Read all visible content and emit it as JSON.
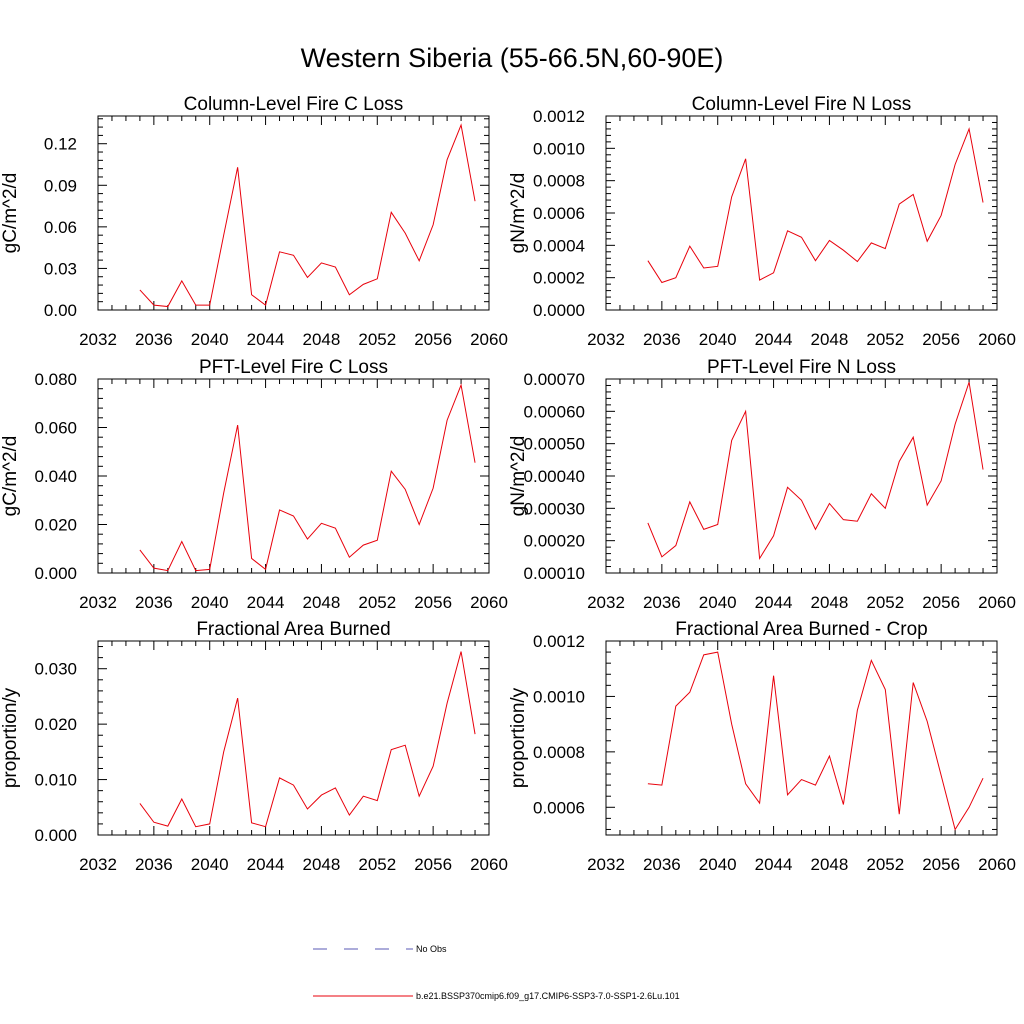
{
  "figure_title": "Western Siberia (55-66.5N,60-90E)",
  "colors": {
    "model": "#e8000b",
    "obs": "#5a5ab4",
    "axis": "#000000"
  },
  "legend": [
    {
      "label": "No Obs",
      "style": "dashed",
      "color": "#5a5ab4"
    },
    {
      "label": "b.e21.BSSP370cmip6.f09_g17.CMIP6-SSP3-7.0-SSP1-2.6Lu.101",
      "style": "solid",
      "color": "#e8000b"
    }
  ],
  "chart_data": [
    {
      "type": "line",
      "title": "Column-Level Fire C Loss",
      "ylabel": "gC/m^2/d",
      "xlim": [
        2032,
        2060
      ],
      "xticks": [
        "2032",
        "2036",
        "2040",
        "2044",
        "2048",
        "2052",
        "2056",
        "2060"
      ],
      "ylim": [
        0,
        0.14
      ],
      "yticks": [
        "0.00",
        "0.03",
        "0.06",
        "0.09",
        "0.12"
      ],
      "x": [
        2035,
        2036,
        2037,
        2038,
        2039,
        2040,
        2041,
        2042,
        2043,
        2044,
        2045,
        2046,
        2047,
        2048,
        2049,
        2050,
        2051,
        2052,
        2053,
        2054,
        2055,
        2056,
        2057,
        2058,
        2059
      ],
      "series": [
        {
          "values": [
            0.0145,
            0.0035,
            0.0025,
            0.021,
            0.0035,
            0.0035,
            0.054,
            0.103,
            0.011,
            0.0035,
            0.042,
            0.0395,
            0.0235,
            0.034,
            0.031,
            0.011,
            0.0185,
            0.0225,
            0.0705,
            0.0555,
            0.0355,
            0.0615,
            0.1085,
            0.1335,
            0.0785
          ]
        }
      ]
    },
    {
      "type": "line",
      "title": "Column-Level Fire N Loss",
      "ylabel": "gN/m^2/d",
      "xlim": [
        2032,
        2060
      ],
      "xticks": [
        "2032",
        "2036",
        "2040",
        "2044",
        "2048",
        "2052",
        "2056",
        "2060"
      ],
      "ylim": [
        0,
        0.0012
      ],
      "yticks": [
        "0.0000",
        "0.0002",
        "0.0004",
        "0.0006",
        "0.0008",
        "0.0010",
        "0.0012"
      ],
      "x": [
        2035,
        2036,
        2037,
        2038,
        2039,
        2040,
        2041,
        2042,
        2043,
        2044,
        2045,
        2046,
        2047,
        2048,
        2049,
        2050,
        2051,
        2052,
        2053,
        2054,
        2055,
        2056,
        2057,
        2058,
        2059
      ],
      "series": [
        {
          "values": [
            0.000305,
            0.00017,
            0.0002,
            0.000395,
            0.00026,
            0.00027,
            0.0007,
            0.000935,
            0.000185,
            0.00023,
            0.00049,
            0.00045,
            0.000305,
            0.00043,
            0.00037,
            0.0003,
            0.000415,
            0.00038,
            0.000655,
            0.000715,
            0.000425,
            0.000585,
            0.0009,
            0.00112,
            0.000665
          ]
        }
      ]
    },
    {
      "type": "line",
      "title": "PFT-Level Fire C Loss",
      "ylabel": "gC/m^2/d",
      "xlim": [
        2032,
        2060
      ],
      "xticks": [
        "2032",
        "2036",
        "2040",
        "2044",
        "2048",
        "2052",
        "2056",
        "2060"
      ],
      "ylim": [
        0,
        0.08
      ],
      "yticks": [
        "0.000",
        "0.020",
        "0.040",
        "0.060",
        "0.080"
      ],
      "x": [
        2035,
        2036,
        2037,
        2038,
        2039,
        2040,
        2041,
        2042,
        2043,
        2044,
        2045,
        2046,
        2047,
        2048,
        2049,
        2050,
        2051,
        2052,
        2053,
        2054,
        2055,
        2056,
        2057,
        2058,
        2059
      ],
      "series": [
        {
          "values": [
            0.0095,
            0.002,
            0.001,
            0.013,
            0.001,
            0.0015,
            0.033,
            0.061,
            0.006,
            0.0015,
            0.026,
            0.0235,
            0.014,
            0.0205,
            0.0185,
            0.0065,
            0.0115,
            0.0135,
            0.042,
            0.0345,
            0.02,
            0.035,
            0.063,
            0.0775,
            0.0455
          ]
        }
      ]
    },
    {
      "type": "line",
      "title": "PFT-Level Fire N Loss",
      "ylabel": "gN/m^2/d",
      "xlim": [
        2032,
        2060
      ],
      "xticks": [
        "2032",
        "2036",
        "2040",
        "2044",
        "2048",
        "2052",
        "2056",
        "2060"
      ],
      "ylim": [
        0.0001,
        0.0007
      ],
      "yticks": [
        "0.00010",
        "0.00020",
        "0.00030",
        "0.00040",
        "0.00050",
        "0.00060",
        "0.00070"
      ],
      "x": [
        2035,
        2036,
        2037,
        2038,
        2039,
        2040,
        2041,
        2042,
        2043,
        2044,
        2045,
        2046,
        2047,
        2048,
        2049,
        2050,
        2051,
        2052,
        2053,
        2054,
        2055,
        2056,
        2057,
        2058,
        2059
      ],
      "series": [
        {
          "values": [
            0.000255,
            0.00015,
            0.000185,
            0.00032,
            0.000235,
            0.00025,
            0.00051,
            0.0006,
            0.000145,
            0.000215,
            0.000365,
            0.000325,
            0.000235,
            0.000315,
            0.000265,
            0.00026,
            0.000345,
            0.0003,
            0.000445,
            0.00052,
            0.00031,
            0.000385,
            0.00056,
            0.00069,
            0.00042
          ]
        }
      ]
    },
    {
      "type": "line",
      "title": "Fractional Area Burned",
      "ylabel": "proportion/y",
      "xlim": [
        2032,
        2060
      ],
      "xticks": [
        "2032",
        "2036",
        "2040",
        "2044",
        "2048",
        "2052",
        "2056",
        "2060"
      ],
      "ylim": [
        0,
        0.035
      ],
      "yticks": [
        "0.000",
        "0.010",
        "0.020",
        "0.030"
      ],
      "x": [
        2035,
        2036,
        2037,
        2038,
        2039,
        2040,
        2041,
        2042,
        2043,
        2044,
        2045,
        2046,
        2047,
        2048,
        2049,
        2050,
        2051,
        2052,
        2053,
        2054,
        2055,
        2056,
        2057,
        2058,
        2059
      ],
      "series": [
        {
          "values": [
            0.0057,
            0.0023,
            0.0016,
            0.0065,
            0.0015,
            0.002,
            0.015,
            0.0247,
            0.0022,
            0.0015,
            0.0103,
            0.009,
            0.0047,
            0.0072,
            0.0085,
            0.0036,
            0.007,
            0.0062,
            0.0154,
            0.0162,
            0.007,
            0.0124,
            0.0238,
            0.0331,
            0.0182
          ]
        }
      ]
    },
    {
      "type": "line",
      "title": "Fractional Area Burned - Crop",
      "ylabel": "proportion/y",
      "xlim": [
        2032,
        2060
      ],
      "xticks": [
        "2032",
        "2036",
        "2040",
        "2044",
        "2048",
        "2052",
        "2056",
        "2060"
      ],
      "ylim": [
        0.0005,
        0.0012
      ],
      "yticks": [
        "0.0006",
        "0.0008",
        "0.0010",
        "0.0012"
      ],
      "x": [
        2035,
        2036,
        2037,
        2038,
        2039,
        2040,
        2041,
        2042,
        2043,
        2044,
        2045,
        2046,
        2047,
        2048,
        2049,
        2050,
        2051,
        2052,
        2053,
        2054,
        2055,
        2056,
        2057,
        2058,
        2059
      ],
      "series": [
        {
          "values": [
            0.000685,
            0.00068,
            0.000965,
            0.001015,
            0.00115,
            0.00116,
            0.0009,
            0.000685,
            0.000615,
            0.001075,
            0.000645,
            0.0007,
            0.00068,
            0.000785,
            0.00061,
            0.00095,
            0.00113,
            0.001025,
            0.000575,
            0.00105,
            0.00091,
            0.000715,
            0.00052,
            0.0006,
            0.000705
          ]
        }
      ]
    }
  ]
}
